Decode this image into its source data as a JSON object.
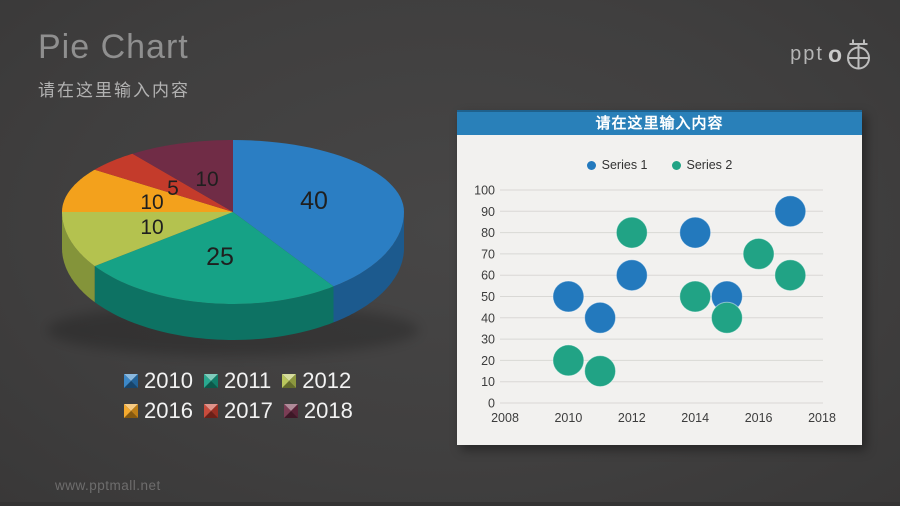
{
  "page": {
    "background": "#403f3f",
    "watermark": "www.pptmall.net"
  },
  "header": {
    "title": "Pie Chart",
    "subtitle": "请在这里输入内容"
  },
  "logo": {
    "text": "ppt",
    "suffix": "o",
    "icon": "pot-compass-icon",
    "color": "#b5b5b5"
  },
  "chart_data": [
    {
      "type": "pie",
      "style": "3d",
      "labels": [
        "2010",
        "2011",
        "2012",
        "2016",
        "2017",
        "2018"
      ],
      "values": [
        40,
        25,
        10,
        10,
        5,
        10
      ],
      "data_labels": [
        "40",
        "25",
        "10",
        "10",
        "5",
        "10"
      ],
      "colors": [
        "#2b7ec3",
        "#16a286",
        "#b4c24f",
        "#f3a11c",
        "#c43b2b",
        "#702c46"
      ],
      "side_colors": [
        "#1c5a8e",
        "#0d7263",
        "#84943a",
        "#b87a12",
        "#8f2a1f",
        "#4f1f32"
      ],
      "start_angle_deg": 0,
      "direction": "clockwise",
      "data_label_color": "#1f1f1f",
      "legend_text_color": "#f2f2f2",
      "legend_rows": 2
    },
    {
      "type": "scatter",
      "title": "请在这里输入内容",
      "panel_bg": "#f2f1ef",
      "header_color": "#2980b9",
      "grid": true,
      "grid_color": "#d9d8d5",
      "legend_position": "top",
      "marker_radius_px": 15.5,
      "xlim": [
        2008,
        2018.5
      ],
      "ylim": [
        0,
        100
      ],
      "x_ticks": [
        2008,
        2010,
        2012,
        2014,
        2016,
        2018
      ],
      "y_ticks": [
        0,
        10,
        20,
        30,
        40,
        50,
        60,
        70,
        80,
        90,
        100
      ],
      "series": [
        {
          "name": "Series 1",
          "color": "#2379bd",
          "points": [
            [
              2010,
              50
            ],
            [
              2011,
              40
            ],
            [
              2012,
              60
            ],
            [
              2014,
              80
            ],
            [
              2015,
              50
            ],
            [
              2017,
              90
            ]
          ]
        },
        {
          "name": "Series 2",
          "color": "#21a385",
          "points": [
            [
              2010,
              20
            ],
            [
              2011,
              15
            ],
            [
              2012,
              80
            ],
            [
              2014,
              50
            ],
            [
              2015,
              40
            ],
            [
              2016,
              70
            ],
            [
              2017,
              60
            ]
          ]
        }
      ]
    }
  ]
}
